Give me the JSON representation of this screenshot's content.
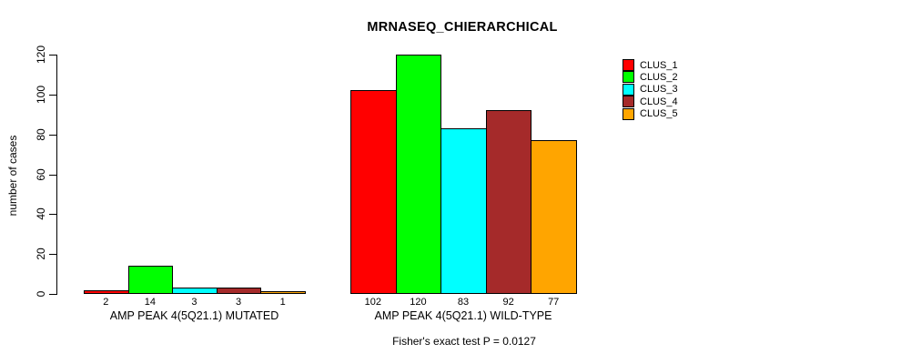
{
  "chart_data": {
    "type": "bar",
    "title": "MRNASEQ_CHIERARCHICAL",
    "ylabel": "number of cases",
    "xlabel": "",
    "ylim": [
      0,
      120
    ],
    "yticks": [
      0,
      20,
      40,
      60,
      80,
      100,
      120
    ],
    "grid": false,
    "legend_position": "right",
    "categories": [
      "AMP PEAK 4(5Q21.1) MUTATED",
      "AMP PEAK 4(5Q21.1) WILD-TYPE"
    ],
    "series": [
      {
        "name": "CLUS_1",
        "color": "#FF0000",
        "values": [
          2,
          102
        ]
      },
      {
        "name": "CLUS_2",
        "color": "#00FF00",
        "values": [
          14,
          120
        ]
      },
      {
        "name": "CLUS_3",
        "color": "#00FFFF",
        "values": [
          3,
          83
        ]
      },
      {
        "name": "CLUS_4",
        "color": "#A52A2A",
        "values": [
          3,
          92
        ]
      },
      {
        "name": "CLUS_5",
        "color": "#FFA500",
        "values": [
          1,
          77
        ]
      }
    ],
    "bar_value_labels": {
      "AMP PEAK 4(5Q21.1) MUTATED": [
        "2",
        "14",
        "3",
        "3",
        "1"
      ],
      "AMP PEAK 4(5Q21.1) WILD-TYPE": [
        "102",
        "120",
        "83",
        "92",
        "77"
      ]
    },
    "annotation": "Fisher's exact test P = 0.0127"
  }
}
